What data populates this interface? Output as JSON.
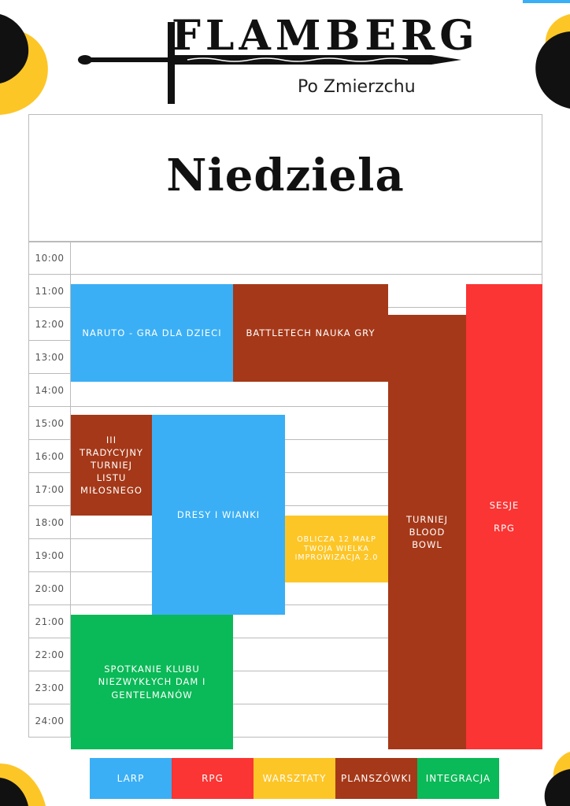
{
  "header": {
    "brand": "FLAMBERG",
    "subtitle": "Po Zmierzchu"
  },
  "day": "Niedziela",
  "colors": {
    "larp": "#3aaff5",
    "rpg": "#fb3434",
    "warsztaty": "#fdc627",
    "planszowki": "#a53818",
    "integracja": "#0ab957",
    "accent_black": "#111111",
    "accent_yellow": "#fdc627"
  },
  "times": [
    "10:00",
    "11:00",
    "12:00",
    "13:00",
    "14:00",
    "15:00",
    "16:00",
    "17:00",
    "18:00",
    "19:00",
    "20:00",
    "21:00",
    "22:00",
    "23:00",
    "24:00"
  ],
  "events": {
    "naruto": "NARUTO - GRA DLA DZIECI",
    "battletech": "BATTLETECH NAUKA GRY",
    "tradycyjny": "III TRADYCYJNY TURNIEJ LISTU MIŁOSNEGO",
    "dresy": "DRESY I WIANKI",
    "oblicza": "OBLICZA 12 MAŁP TWOJA WIELKA IMPROWIZACJA 2.0",
    "bloodbowl": "TURNIEJ BLOOD BOWL",
    "sesje_1": "SESJE",
    "sesje_2": "RPG",
    "klub": "SPOTKANIE KLUBU NIEZWYKŁYCH DAM I GENTELMANÓW"
  },
  "legend": [
    {
      "label": "LARP",
      "color": "#3aaff5"
    },
    {
      "label": "RPG",
      "color": "#fb3434"
    },
    {
      "label": "WARSZTATY",
      "color": "#fdc627"
    },
    {
      "label": "PLANSZÓWKI",
      "color": "#a53818"
    },
    {
      "label": "INTEGRACJA",
      "color": "#0ab957"
    }
  ]
}
